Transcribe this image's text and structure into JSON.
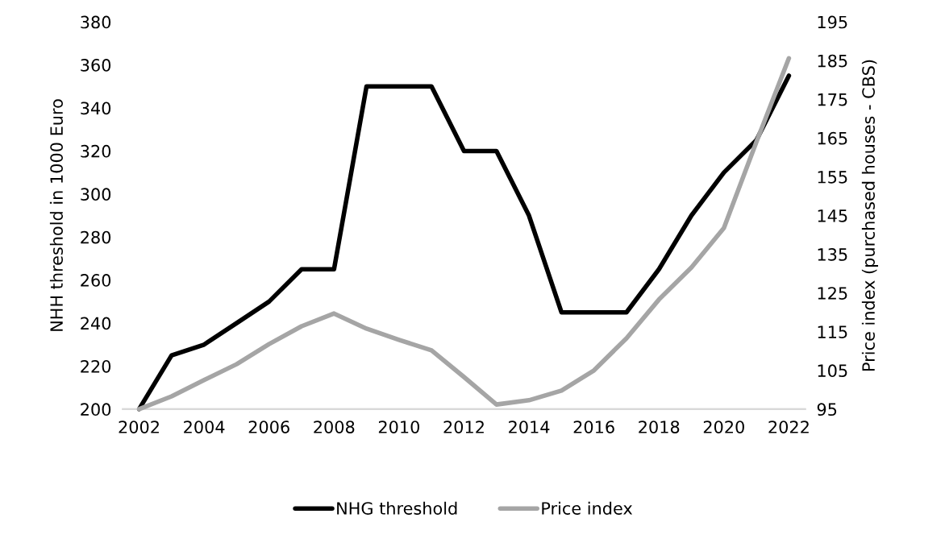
{
  "chart_data": {
    "type": "line",
    "x": [
      2002,
      2003,
      2004,
      2005,
      2006,
      2007,
      2008,
      2009,
      2010,
      2011,
      2012,
      2013,
      2014,
      2015,
      2016,
      2017,
      2018,
      2019,
      2020,
      2021,
      2022
    ],
    "series": [
      {
        "name": "NHG threshold",
        "color": "#000000",
        "values": [
          200,
          225,
          230,
          240,
          250,
          265,
          265,
          350,
          350,
          350,
          320,
          320,
          290,
          245,
          245,
          245,
          265,
          290,
          310,
          325,
          355
        ]
      },
      {
        "name": "Price index",
        "color": "#a5a5a5",
        "axis": "y2",
        "values": [
          95,
          98.3,
          102.5,
          106.6,
          111.8,
          116.4,
          119.7,
          115.8,
          112.9,
          110.2,
          103.3,
          96.2,
          97.3,
          99.8,
          105,
          113.3,
          123.3,
          131.6,
          141.8,
          164,
          185.6
        ]
      }
    ],
    "ylabel": "NHH threshold in 1000 Euro",
    "y2label": "Price index (purchased houses - CBS)",
    "xlim": [
      2001.5,
      2022.5
    ],
    "xticks": [
      2002,
      2004,
      2006,
      2008,
      2010,
      2012,
      2014,
      2016,
      2018,
      2020,
      2022
    ],
    "ylim": [
      200,
      380
    ],
    "yticks": [
      200,
      220,
      240,
      260,
      280,
      300,
      320,
      340,
      360,
      380
    ],
    "y2lim": [
      95,
      195
    ],
    "y2ticks": [
      95,
      105,
      115,
      125,
      135,
      145,
      155,
      165,
      175,
      185,
      195
    ],
    "legend": "bottom",
    "grid": false,
    "line_style": "solid",
    "marker": "none"
  }
}
